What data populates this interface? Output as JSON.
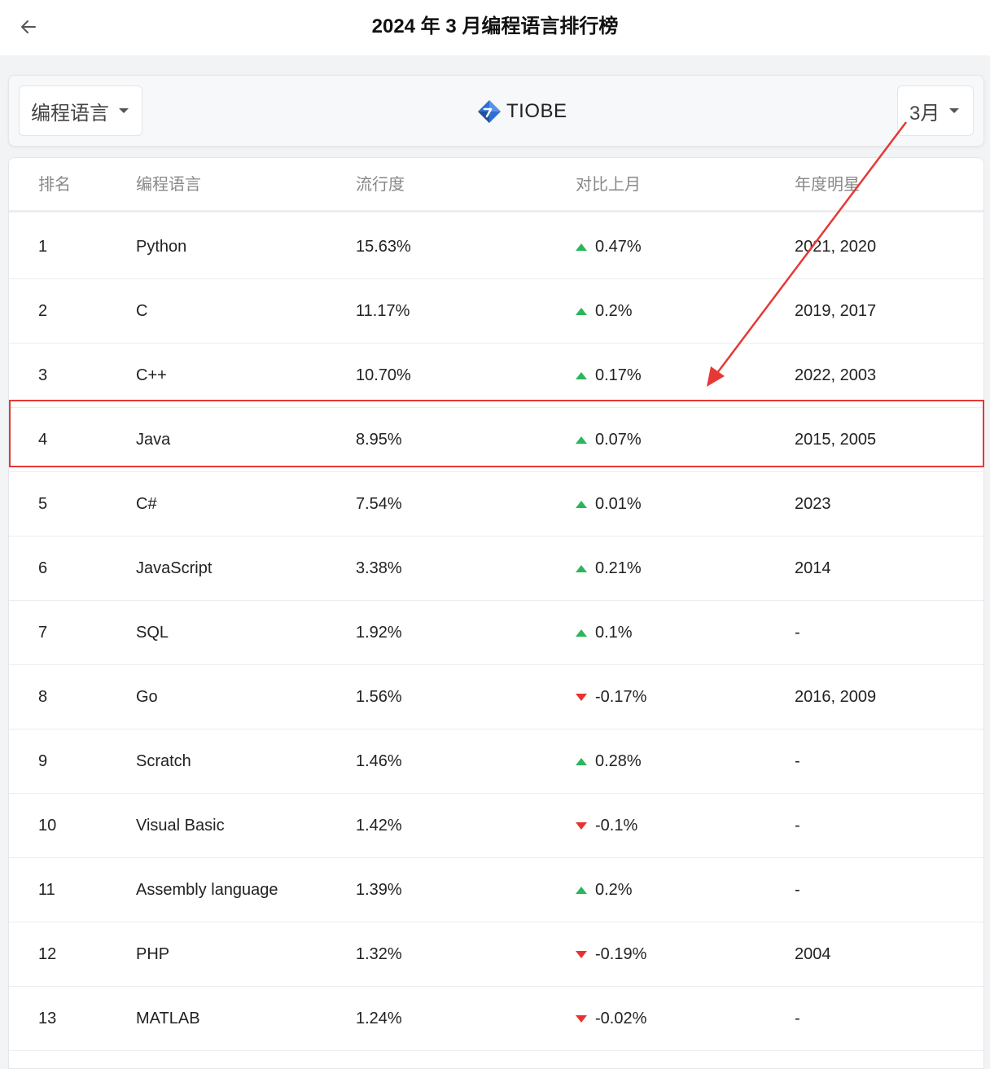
{
  "header": {
    "title": "2024 年 3 月编程语言排行榜"
  },
  "filters": {
    "language_dropdown": "编程语言",
    "brand_name": "TIOBE",
    "month_dropdown": "3月"
  },
  "table": {
    "columns": {
      "rank": "排名",
      "language": "编程语言",
      "popularity": "流行度",
      "change": "对比上月",
      "star": "年度明星"
    },
    "rows": [
      {
        "rank": "1",
        "language": "Python",
        "popularity": "15.63%",
        "trend": "up",
        "change": "0.47%",
        "star": "2021, 2020"
      },
      {
        "rank": "2",
        "language": "C",
        "popularity": "11.17%",
        "trend": "up",
        "change": "0.2%",
        "star": "2019, 2017"
      },
      {
        "rank": "3",
        "language": "C++",
        "popularity": "10.70%",
        "trend": "up",
        "change": "0.17%",
        "star": "2022, 2003"
      },
      {
        "rank": "4",
        "language": "Java",
        "popularity": "8.95%",
        "trend": "up",
        "change": "0.07%",
        "star": "2015, 2005"
      },
      {
        "rank": "5",
        "language": "C#",
        "popularity": "7.54%",
        "trend": "up",
        "change": "0.01%",
        "star": "2023"
      },
      {
        "rank": "6",
        "language": "JavaScript",
        "popularity": "3.38%",
        "trend": "up",
        "change": "0.21%",
        "star": "2014"
      },
      {
        "rank": "7",
        "language": "SQL",
        "popularity": "1.92%",
        "trend": "up",
        "change": "0.1%",
        "star": "-"
      },
      {
        "rank": "8",
        "language": "Go",
        "popularity": "1.56%",
        "trend": "down",
        "change": "-0.17%",
        "star": "2016, 2009"
      },
      {
        "rank": "9",
        "language": "Scratch",
        "popularity": "1.46%",
        "trend": "up",
        "change": "0.28%",
        "star": "-"
      },
      {
        "rank": "10",
        "language": "Visual Basic",
        "popularity": "1.42%",
        "trend": "down",
        "change": "-0.1%",
        "star": "-"
      },
      {
        "rank": "11",
        "language": "Assembly language",
        "popularity": "1.39%",
        "trend": "up",
        "change": "0.2%",
        "star": "-"
      },
      {
        "rank": "12",
        "language": "PHP",
        "popularity": "1.32%",
        "trend": "down",
        "change": "-0.19%",
        "star": "2004"
      },
      {
        "rank": "13",
        "language": "MATLAB",
        "popularity": "1.24%",
        "trend": "down",
        "change": "-0.02%",
        "star": "-"
      }
    ]
  },
  "colors": {
    "up": "#2db55d",
    "down": "#e8322f",
    "annotation": "#e53935",
    "brand_blue": "#2f6fd1"
  },
  "icons": {
    "back": "arrow-left-icon",
    "caret": "caret-down-icon",
    "brand": "tiobe-logo-icon"
  }
}
